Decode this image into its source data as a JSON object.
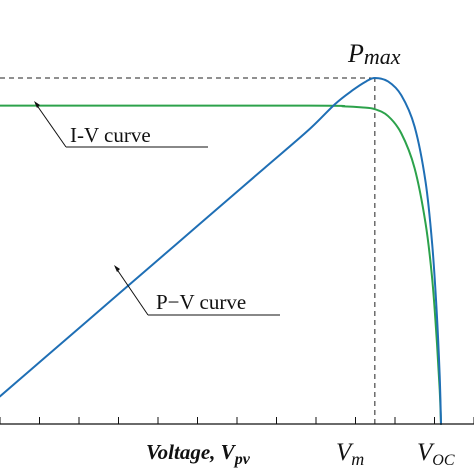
{
  "chart_data": {
    "type": "line",
    "xlabel": "Voltage, V",
    "xlabel_sub": "pv",
    "x_ticks": [
      {
        "label": "V",
        "sub": "m",
        "x": 0.85
      },
      {
        "label": "V",
        "sub": "OC",
        "x": 1.0
      }
    ],
    "peak_label": {
      "main": "P",
      "sub": "max"
    },
    "annotations": [
      {
        "text": "I-V curve",
        "target": "I-V curve"
      },
      {
        "text": "P−V curve",
        "target": "P-V curve"
      }
    ],
    "series": [
      {
        "name": "I-V curve",
        "color": "#2ca24b",
        "points": [
          [
            0.0,
            0.92
          ],
          [
            0.7,
            0.92
          ],
          [
            0.78,
            0.918
          ],
          [
            0.82,
            0.915
          ],
          [
            0.85,
            0.91
          ],
          [
            0.88,
            0.89
          ],
          [
            0.91,
            0.84
          ],
          [
            0.94,
            0.74
          ],
          [
            0.965,
            0.58
          ],
          [
            0.98,
            0.42
          ],
          [
            0.99,
            0.25
          ],
          [
            0.997,
            0.1
          ],
          [
            1.0,
            0.0
          ]
        ]
      },
      {
        "name": "P-V curve",
        "color": "#1f6fb5",
        "points": [
          [
            0.0,
            0.08
          ],
          [
            0.1,
            0.19
          ],
          [
            0.2,
            0.3
          ],
          [
            0.3,
            0.41
          ],
          [
            0.4,
            0.52
          ],
          [
            0.5,
            0.63
          ],
          [
            0.6,
            0.74
          ],
          [
            0.7,
            0.85
          ],
          [
            0.76,
            0.925
          ],
          [
            0.8,
            0.965
          ],
          [
            0.83,
            0.99
          ],
          [
            0.85,
            1.0
          ],
          [
            0.88,
            0.99
          ],
          [
            0.91,
            0.95
          ],
          [
            0.94,
            0.86
          ],
          [
            0.965,
            0.7
          ],
          [
            0.98,
            0.52
          ],
          [
            0.99,
            0.33
          ],
          [
            0.997,
            0.14
          ],
          [
            1.0,
            0.0
          ]
        ]
      }
    ],
    "reference_lines": [
      {
        "type": "horizontal",
        "y": 1.0,
        "x_to": 0.85,
        "style": "dashed"
      },
      {
        "type": "vertical",
        "x": 0.85,
        "y_to": 1.0,
        "style": "dashed"
      }
    ],
    "xlim": [
      0,
      1
    ],
    "ylim": [
      0,
      1
    ],
    "tick_count": 12
  }
}
